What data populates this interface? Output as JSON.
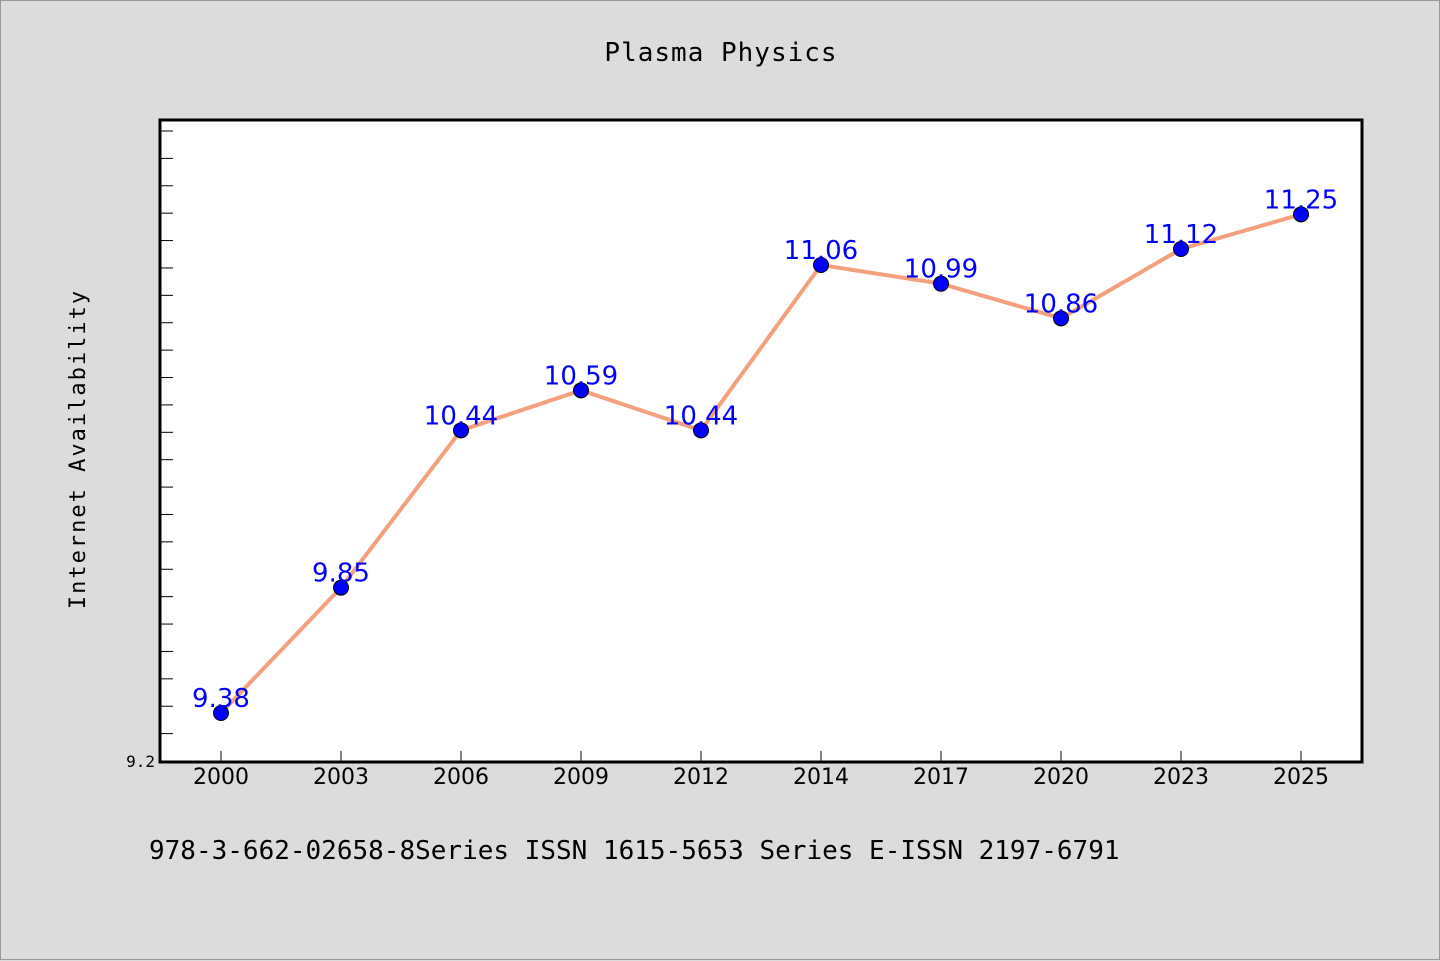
{
  "colors": {
    "line": "#f4a07f",
    "marker": "#0000ff",
    "label": "#0000ff",
    "plot_bg": "#ffffff",
    "page_bg": "#dcdcdc"
  },
  "chart_data": {
    "type": "line",
    "title": "Plasma Physics",
    "xlabel": "",
    "ylabel": "Internet Availability",
    "categories": [
      "2000",
      "2003",
      "2006",
      "2009",
      "2012",
      "2014",
      "2017",
      "2020",
      "2023",
      "2025"
    ],
    "series": [
      {
        "values": [
          9.38,
          9.85,
          10.44,
          10.59,
          10.44,
          11.06,
          10.99,
          10.86,
          11.12,
          11.25
        ],
        "labels": [
          "9.38",
          "9.85",
          "10.44",
          "10.59",
          "10.44",
          "11.06",
          "10.99",
          "10.86",
          "11.12",
          "11.25"
        ]
      }
    ],
    "ylim": [
      9.2,
      11.6
    ],
    "y_tick_labels": [
      {
        "value": 9.2,
        "label": "9.2"
      }
    ],
    "grid": false,
    "legend": "none"
  },
  "footer": {
    "text": "978-3-662-02658-8Series ISSN 1615-5653 Series E-ISSN 2197-6791"
  }
}
